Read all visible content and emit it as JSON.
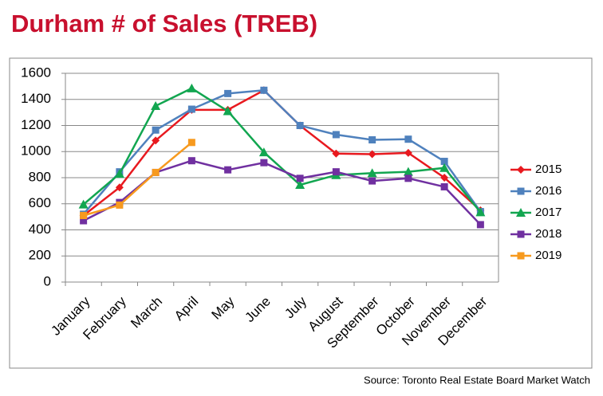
{
  "chart_data": {
    "type": "line",
    "title": "Durham # of Sales (TREB)",
    "source": "Source: Toronto Real Estate Board Market Watch",
    "categories": [
      "January",
      "February",
      "March",
      "April",
      "May",
      "June",
      "July",
      "August",
      "September",
      "October",
      "November",
      "December"
    ],
    "series": [
      {
        "name": "2015",
        "color": "#e8191f",
        "marker": "diamond",
        "values": [
          510,
          725,
          1085,
          1320,
          1320,
          1470,
          1200,
          985,
          980,
          990,
          800,
          550
        ]
      },
      {
        "name": "2016",
        "color": "#4f81bd",
        "marker": "square",
        "values": [
          520,
          845,
          1165,
          1325,
          1445,
          1470,
          1200,
          1130,
          1090,
          1095,
          925,
          540
        ]
      },
      {
        "name": "2017",
        "color": "#12a650",
        "marker": "triangle",
        "values": [
          595,
          830,
          1350,
          1485,
          1310,
          995,
          745,
          820,
          835,
          845,
          875,
          535
        ]
      },
      {
        "name": "2018",
        "color": "#7030a0",
        "marker": "square",
        "values": [
          470,
          610,
          840,
          930,
          860,
          915,
          795,
          845,
          775,
          795,
          730,
          440
        ]
      },
      {
        "name": "2019",
        "color": "#f79a1e",
        "marker": "square",
        "values": [
          510,
          590,
          840,
          1070,
          null,
          null,
          null,
          null,
          null,
          null,
          null,
          null
        ]
      }
    ],
    "ylim": [
      0,
      1600
    ],
    "yticks": [
      0,
      200,
      400,
      600,
      800,
      1000,
      1200,
      1400,
      1600
    ],
    "grid": true,
    "legend": "right"
  }
}
